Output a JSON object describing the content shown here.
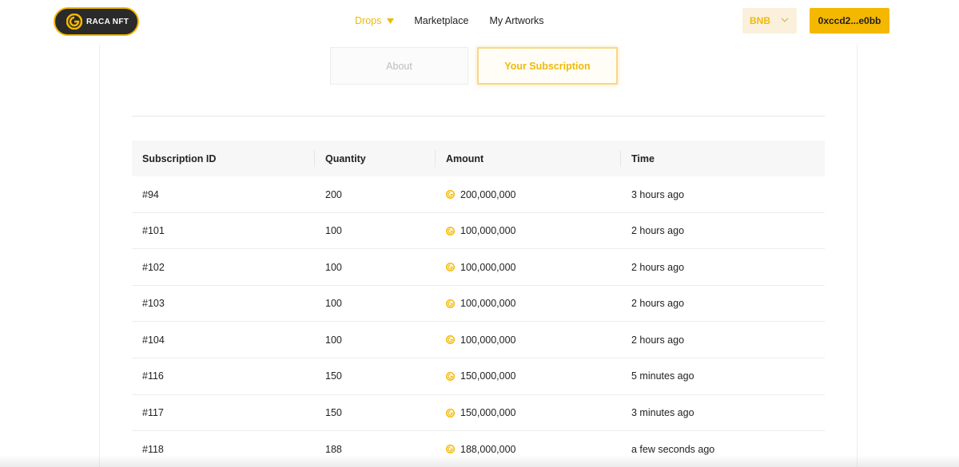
{
  "brand": {
    "logo_text": "RACA NFT"
  },
  "nav": {
    "drops": "Drops",
    "marketplace": "Marketplace",
    "my_artworks": "My Artworks"
  },
  "network": {
    "label": "BNB"
  },
  "wallet": {
    "address": "0xccd2...e0bb"
  },
  "tabs": {
    "about": "About",
    "subscription": "Your Subscription"
  },
  "colors": {
    "accent": "#f5b800",
    "accent_text": "#f0b90b"
  },
  "table": {
    "headers": {
      "id": "Subscription ID",
      "quantity": "Quantity",
      "amount": "Amount",
      "time": "Time"
    },
    "rows": [
      {
        "id": "#94",
        "quantity": "200",
        "amount": "200,000,000",
        "time": "3 hours ago"
      },
      {
        "id": "#101",
        "quantity": "100",
        "amount": "100,000,000",
        "time": "2 hours ago"
      },
      {
        "id": "#102",
        "quantity": "100",
        "amount": "100,000,000",
        "time": "2 hours ago"
      },
      {
        "id": "#103",
        "quantity": "100",
        "amount": "100,000,000",
        "time": "2 hours ago"
      },
      {
        "id": "#104",
        "quantity": "100",
        "amount": "100,000,000",
        "time": "2 hours ago"
      },
      {
        "id": "#116",
        "quantity": "150",
        "amount": "150,000,000",
        "time": "5 minutes ago"
      },
      {
        "id": "#117",
        "quantity": "150",
        "amount": "150,000,000",
        "time": "3 minutes ago"
      },
      {
        "id": "#118",
        "quantity": "188",
        "amount": "188,000,000",
        "time": "a few seconds ago"
      }
    ],
    "amount_icon": "raca-coin-icon"
  }
}
